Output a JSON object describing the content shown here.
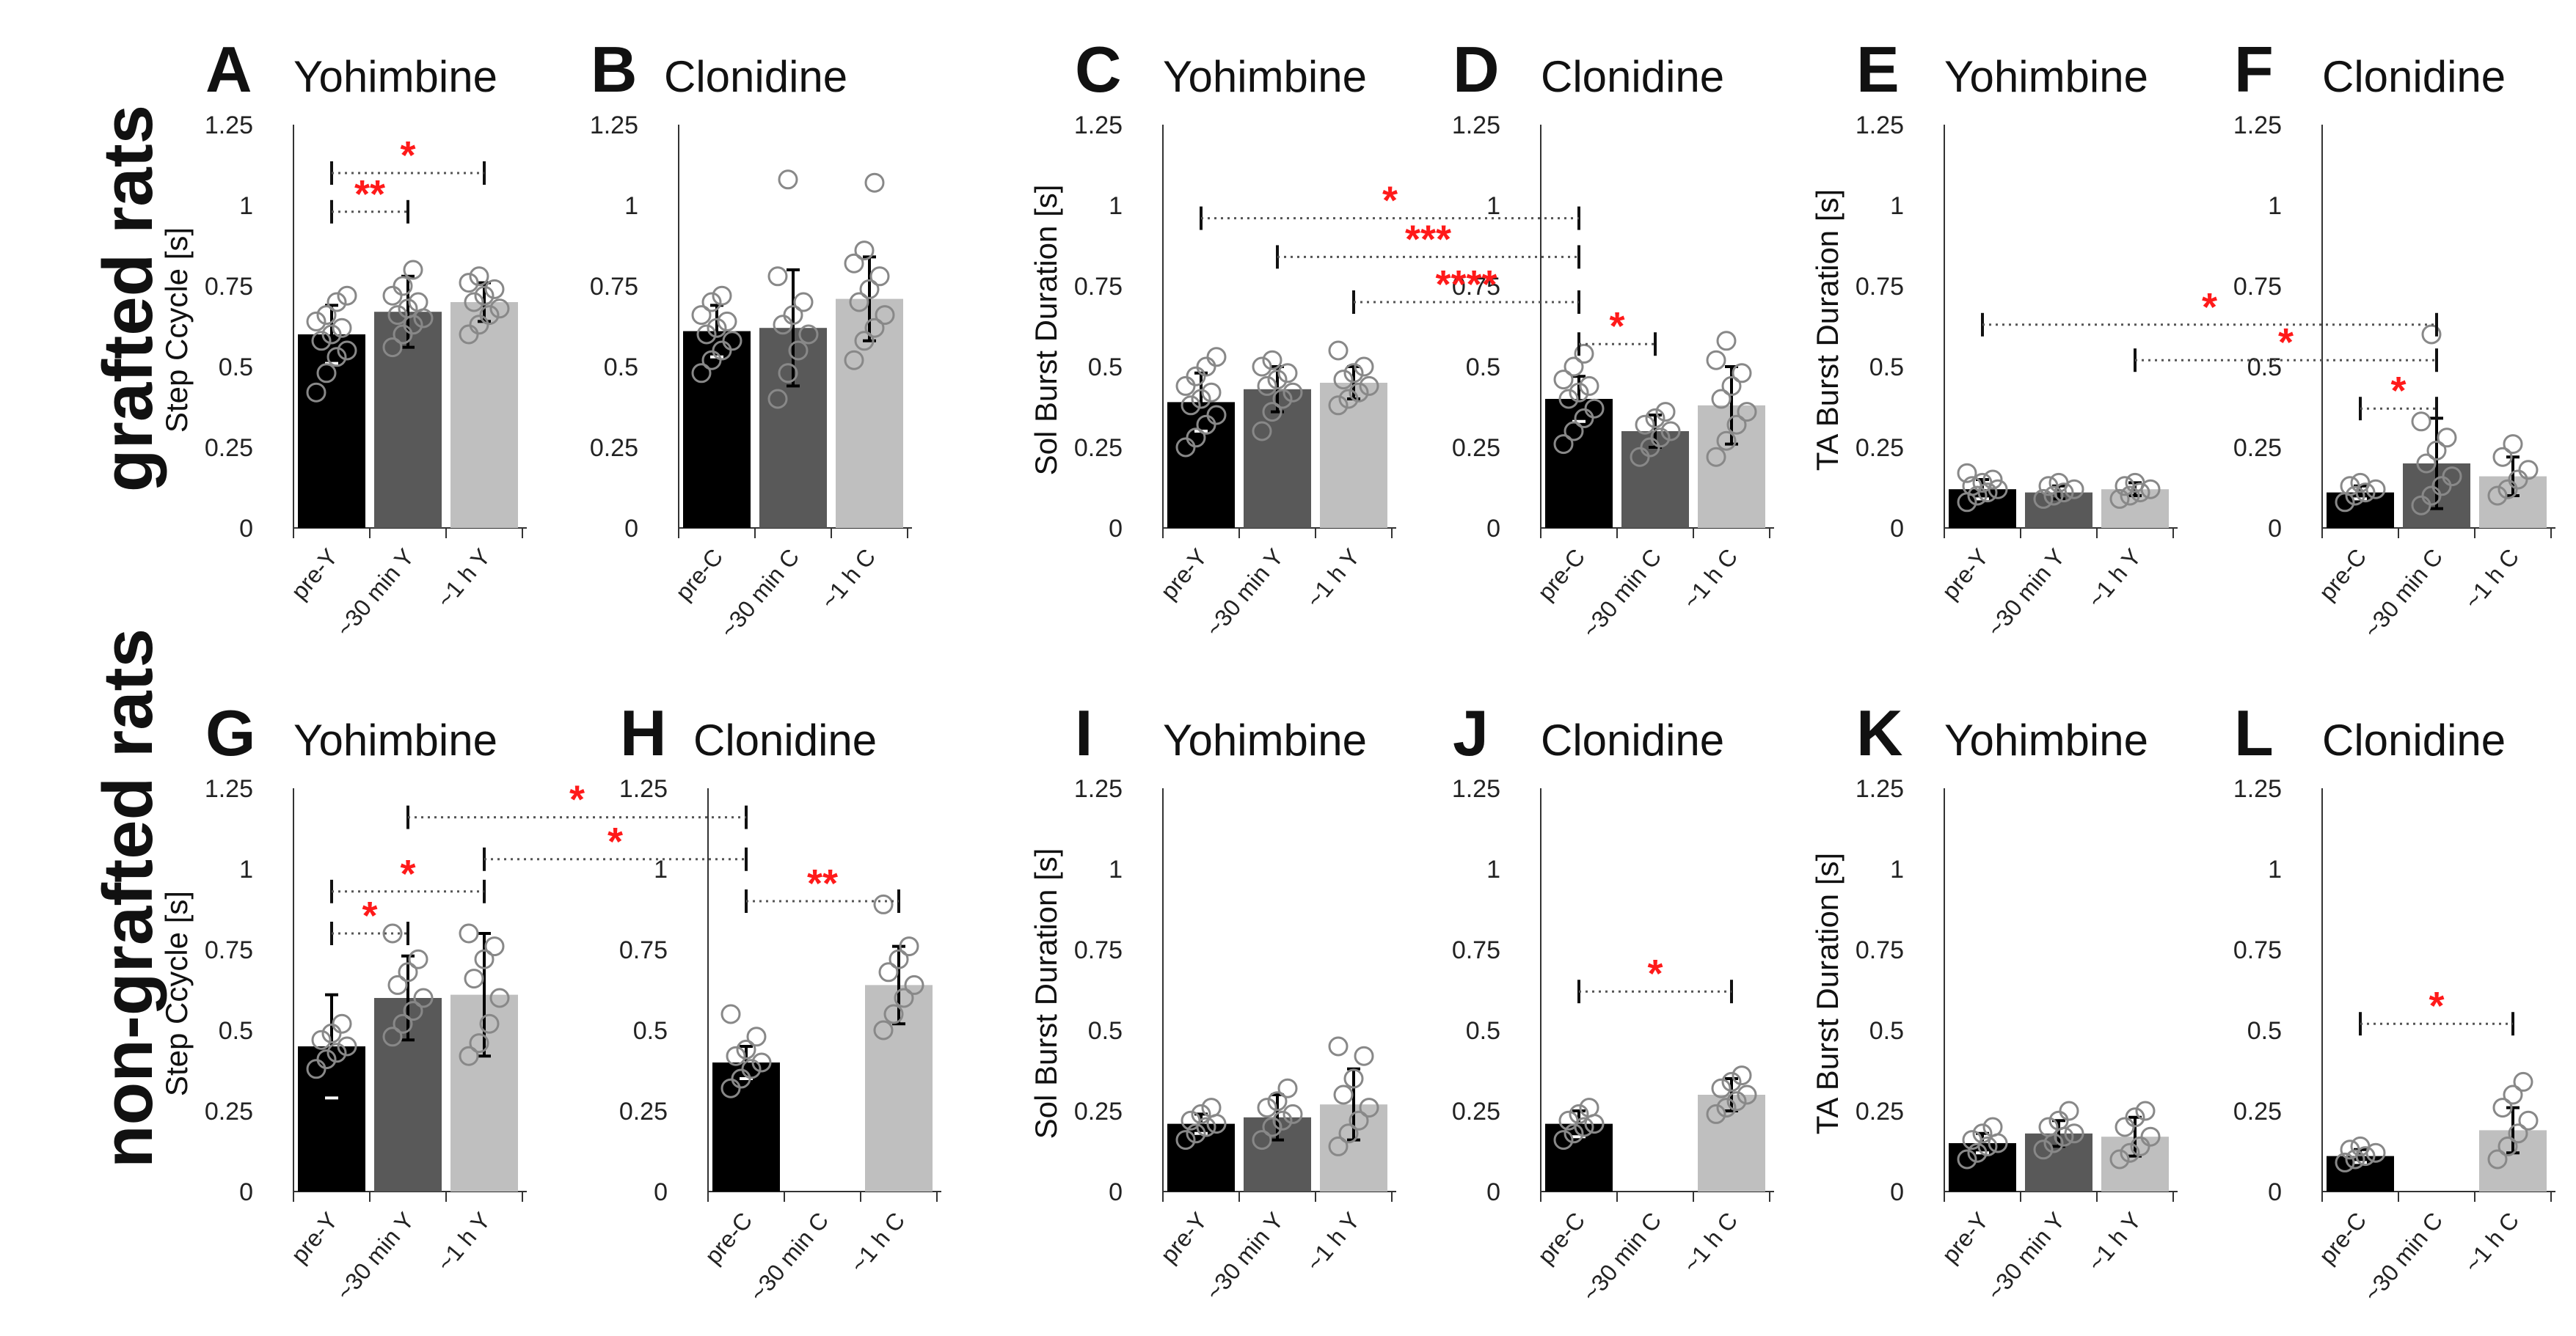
{
  "row_labels": {
    "top": "grafted rats",
    "bottom": "non-grafted rats"
  },
  "axis_labels": {
    "step": "Step Ccycle [s]",
    "sol": "Sol Burst Duration [s]",
    "ta": "TA Burst Duration [s]"
  },
  "yticks": [
    "0",
    "0.25",
    "0.5",
    "0.75",
    "1",
    "1.25"
  ],
  "colors": {
    "c0": "#000000",
    "c1": "#595959",
    "c2": "#bfbfbf",
    "star": "#ff1a1a",
    "dot": "#888888"
  },
  "chart_data": [
    {
      "panel": "A",
      "title": "Yohimbine",
      "ylabel": "step",
      "ylim": [
        0,
        1.25
      ],
      "type": "bar",
      "categories": [
        "pre-Y",
        "~30 min Y",
        "~1 h Y"
      ],
      "values": [
        0.6,
        0.67,
        0.7
      ],
      "sd": [
        0.09,
        0.11,
        0.06
      ],
      "points": [
        [
          0.42,
          0.48,
          0.53,
          0.55,
          0.58,
          0.6,
          0.62,
          0.64,
          0.66,
          0.7,
          0.72
        ],
        [
          0.56,
          0.6,
          0.63,
          0.65,
          0.66,
          0.68,
          0.7,
          0.72,
          0.75,
          0.8
        ],
        [
          0.6,
          0.63,
          0.66,
          0.68,
          0.7,
          0.72,
          0.74,
          0.76,
          0.78
        ]
      ],
      "sig": [
        {
          "from": 0,
          "to": 2,
          "y": 1.1,
          "label": "*"
        },
        {
          "from": 0,
          "to": 1,
          "y": 0.98,
          "label": "**"
        }
      ]
    },
    {
      "panel": "B",
      "title": "Clonidine",
      "ylabel": "none",
      "ylim": [
        0,
        1.25
      ],
      "type": "bar",
      "categories": [
        "pre-C",
        "~30 min C",
        "~1 h C"
      ],
      "values": [
        0.61,
        0.62,
        0.71
      ],
      "sd": [
        0.08,
        0.18,
        0.13
      ],
      "points": [
        [
          0.48,
          0.52,
          0.55,
          0.58,
          0.6,
          0.62,
          0.64,
          0.66,
          0.7,
          0.72
        ],
        [
          0.4,
          0.48,
          0.55,
          0.6,
          0.63,
          0.66,
          0.7,
          0.78,
          1.08
        ],
        [
          0.52,
          0.58,
          0.62,
          0.66,
          0.7,
          0.74,
          0.78,
          0.82,
          0.86,
          1.07
        ]
      ],
      "sig": []
    },
    {
      "panel": "C",
      "title": "Yohimbine",
      "ylabel": "sol",
      "ylim": [
        0,
        1.25
      ],
      "type": "bar",
      "categories": [
        "pre-Y",
        "~30 min Y",
        "~1 h Y"
      ],
      "values": [
        0.39,
        0.43,
        0.45
      ],
      "sd": [
        0.09,
        0.07,
        0.05
      ],
      "points": [
        [
          0.25,
          0.28,
          0.32,
          0.35,
          0.38,
          0.4,
          0.42,
          0.44,
          0.47,
          0.5,
          0.53
        ],
        [
          0.3,
          0.36,
          0.4,
          0.42,
          0.44,
          0.46,
          0.48,
          0.5,
          0.52
        ],
        [
          0.38,
          0.4,
          0.42,
          0.44,
          0.46,
          0.48,
          0.5,
          0.55
        ]
      ],
      "sig": []
    },
    {
      "panel": "D",
      "title": "Clonidine",
      "ylabel": "none",
      "ylim": [
        0,
        1.25
      ],
      "type": "bar",
      "categories": [
        "pre-C",
        "~30 min C",
        "~1 h C"
      ],
      "values": [
        0.4,
        0.3,
        0.38
      ],
      "sd": [
        0.07,
        0.05,
        0.12
      ],
      "points": [
        [
          0.26,
          0.3,
          0.34,
          0.37,
          0.4,
          0.42,
          0.44,
          0.46,
          0.5,
          0.54
        ],
        [
          0.22,
          0.25,
          0.28,
          0.3,
          0.32,
          0.34,
          0.36
        ],
        [
          0.22,
          0.27,
          0.32,
          0.36,
          0.4,
          0.44,
          0.48,
          0.52,
          0.58
        ]
      ],
      "sig": [
        {
          "from": 0,
          "to": 1,
          "y": 0.57,
          "label": "*"
        }
      ]
    },
    {
      "panel": "E",
      "title": "Yohimbine",
      "ylabel": "ta",
      "ylim": [
        0,
        1.25
      ],
      "type": "bar",
      "categories": [
        "pre-Y",
        "~30 min Y",
        "~1 h Y"
      ],
      "values": [
        0.12,
        0.11,
        0.12
      ],
      "sd": [
        0.03,
        0.02,
        0.02
      ],
      "points": [
        [
          0.08,
          0.1,
          0.11,
          0.12,
          0.13,
          0.14,
          0.15,
          0.17
        ],
        [
          0.09,
          0.1,
          0.11,
          0.12,
          0.13,
          0.14
        ],
        [
          0.09,
          0.1,
          0.11,
          0.12,
          0.13,
          0.14
        ]
      ],
      "sig": []
    },
    {
      "panel": "F",
      "title": "Clonidine",
      "ylabel": "none",
      "ylim": [
        0,
        1.25
      ],
      "type": "bar",
      "categories": [
        "pre-C",
        "~30 min C",
        "~1 h C"
      ],
      "values": [
        0.11,
        0.2,
        0.16
      ],
      "sd": [
        0.02,
        0.14,
        0.06
      ],
      "points": [
        [
          0.08,
          0.1,
          0.11,
          0.12,
          0.13,
          0.14
        ],
        [
          0.07,
          0.1,
          0.13,
          0.16,
          0.2,
          0.24,
          0.28,
          0.33,
          0.6
        ],
        [
          0.1,
          0.12,
          0.15,
          0.18,
          0.22,
          0.26
        ]
      ],
      "sig": [
        {
          "from": 0,
          "to": 1,
          "y": 0.37,
          "label": "*"
        }
      ]
    },
    {
      "panel": "G",
      "title": "Yohimbine",
      "ylabel": "step",
      "ylim": [
        0,
        1.25
      ],
      "type": "bar",
      "categories": [
        "pre-Y",
        "~30 min Y",
        "~1 h Y"
      ],
      "values": [
        0.45,
        0.6,
        0.61
      ],
      "sd": [
        0.16,
        0.13,
        0.19
      ],
      "points": [
        [
          0.38,
          0.41,
          0.43,
          0.45,
          0.47,
          0.49,
          0.52
        ],
        [
          0.48,
          0.52,
          0.56,
          0.6,
          0.64,
          0.68,
          0.72,
          0.8
        ],
        [
          0.42,
          0.46,
          0.52,
          0.6,
          0.66,
          0.72,
          0.76,
          0.8
        ]
      ],
      "sig": [
        {
          "from": 0,
          "to": 1,
          "y": 0.8,
          "label": "*"
        },
        {
          "from": 0,
          "to": 2,
          "y": 0.93,
          "label": "*"
        }
      ]
    },
    {
      "panel": "H",
      "title": "Clonidine",
      "ylabel": "none",
      "ylim": [
        0,
        1.25
      ],
      "type": "bar",
      "categories": [
        "pre-C",
        "~30 min C",
        "~1 h C"
      ],
      "values": [
        0.4,
        null,
        0.64
      ],
      "sd": [
        0.05,
        null,
        0.12
      ],
      "points": [
        [
          0.32,
          0.35,
          0.38,
          0.4,
          0.42,
          0.44,
          0.48,
          0.55
        ],
        [],
        [
          0.5,
          0.55,
          0.6,
          0.64,
          0.68,
          0.72,
          0.76,
          0.89
        ]
      ],
      "sig": [
        {
          "from": 0,
          "to": 2,
          "y": 0.9,
          "label": "**"
        }
      ]
    },
    {
      "panel": "I",
      "title": "Yohimbine",
      "ylabel": "sol",
      "ylim": [
        0,
        1.25
      ],
      "type": "bar",
      "categories": [
        "pre-Y",
        "~30 min Y",
        "~1 h Y"
      ],
      "values": [
        0.21,
        0.23,
        0.27
      ],
      "sd": [
        0.03,
        0.07,
        0.11
      ],
      "points": [
        [
          0.16,
          0.18,
          0.2,
          0.21,
          0.22,
          0.24,
          0.26
        ],
        [
          0.16,
          0.2,
          0.22,
          0.24,
          0.26,
          0.28,
          0.32
        ],
        [
          0.14,
          0.18,
          0.22,
          0.26,
          0.3,
          0.35,
          0.42,
          0.45
        ]
      ],
      "sig": []
    },
    {
      "panel": "J",
      "title": "Clonidine",
      "ylabel": "none",
      "ylim": [
        0,
        1.25
      ],
      "type": "bar",
      "categories": [
        "pre-C",
        "~30 min C",
        "~1 h C"
      ],
      "values": [
        0.21,
        null,
        0.3
      ],
      "sd": [
        0.04,
        null,
        0.05
      ],
      "points": [
        [
          0.16,
          0.18,
          0.2,
          0.21,
          0.22,
          0.24,
          0.26
        ],
        [],
        [
          0.24,
          0.26,
          0.28,
          0.3,
          0.32,
          0.34,
          0.36
        ]
      ],
      "sig": [
        {
          "from": 0,
          "to": 2,
          "y": 0.62,
          "label": "*"
        }
      ]
    },
    {
      "panel": "K",
      "title": "Yohimbine",
      "ylabel": "ta",
      "ylim": [
        0,
        1.25
      ],
      "type": "bar",
      "categories": [
        "pre-Y",
        "~30 min Y",
        "~1 h Y"
      ],
      "values": [
        0.15,
        0.18,
        0.17
      ],
      "sd": [
        0.03,
        0.04,
        0.06
      ],
      "points": [
        [
          0.1,
          0.12,
          0.14,
          0.15,
          0.16,
          0.18,
          0.2
        ],
        [
          0.13,
          0.15,
          0.17,
          0.18,
          0.2,
          0.22,
          0.25
        ],
        [
          0.1,
          0.12,
          0.14,
          0.17,
          0.2,
          0.23,
          0.25
        ]
      ],
      "sig": []
    },
    {
      "panel": "L",
      "title": "Clonidine",
      "ylabel": "none",
      "ylim": [
        0,
        1.25
      ],
      "type": "bar",
      "categories": [
        "pre-C",
        "~30 min C",
        "~1 h C"
      ],
      "values": [
        0.11,
        null,
        0.19
      ],
      "sd": [
        0.02,
        null,
        0.07
      ],
      "points": [
        [
          0.09,
          0.1,
          0.11,
          0.12,
          0.13,
          0.14
        ],
        [],
        [
          0.1,
          0.14,
          0.18,
          0.22,
          0.26,
          0.3,
          0.34
        ]
      ],
      "sig": [
        {
          "from": 0,
          "to": 2,
          "y": 0.52,
          "label": "*"
        }
      ]
    }
  ],
  "cross_sig": [
    {
      "from": [
        "C",
        0
      ],
      "to": [
        "D",
        0
      ],
      "y": 0.96,
      "label": "*"
    },
    {
      "from": [
        "C",
        1
      ],
      "to": [
        "D",
        0
      ],
      "y": 0.84,
      "label": "***"
    },
    {
      "from": [
        "C",
        2
      ],
      "to": [
        "D",
        0
      ],
      "y": 0.7,
      "label": "****"
    },
    {
      "from": [
        "E",
        0
      ],
      "to": [
        "F",
        1
      ],
      "y": 0.63,
      "label": "*"
    },
    {
      "from": [
        "E",
        2
      ],
      "to": [
        "F",
        1
      ],
      "y": 0.52,
      "label": "*"
    },
    {
      "from": [
        "G",
        1
      ],
      "to": [
        "H",
        0
      ],
      "y": 1.16,
      "label": "*"
    },
    {
      "from": [
        "G",
        2
      ],
      "to": [
        "H",
        0
      ],
      "y": 1.03,
      "label": "*"
    }
  ]
}
